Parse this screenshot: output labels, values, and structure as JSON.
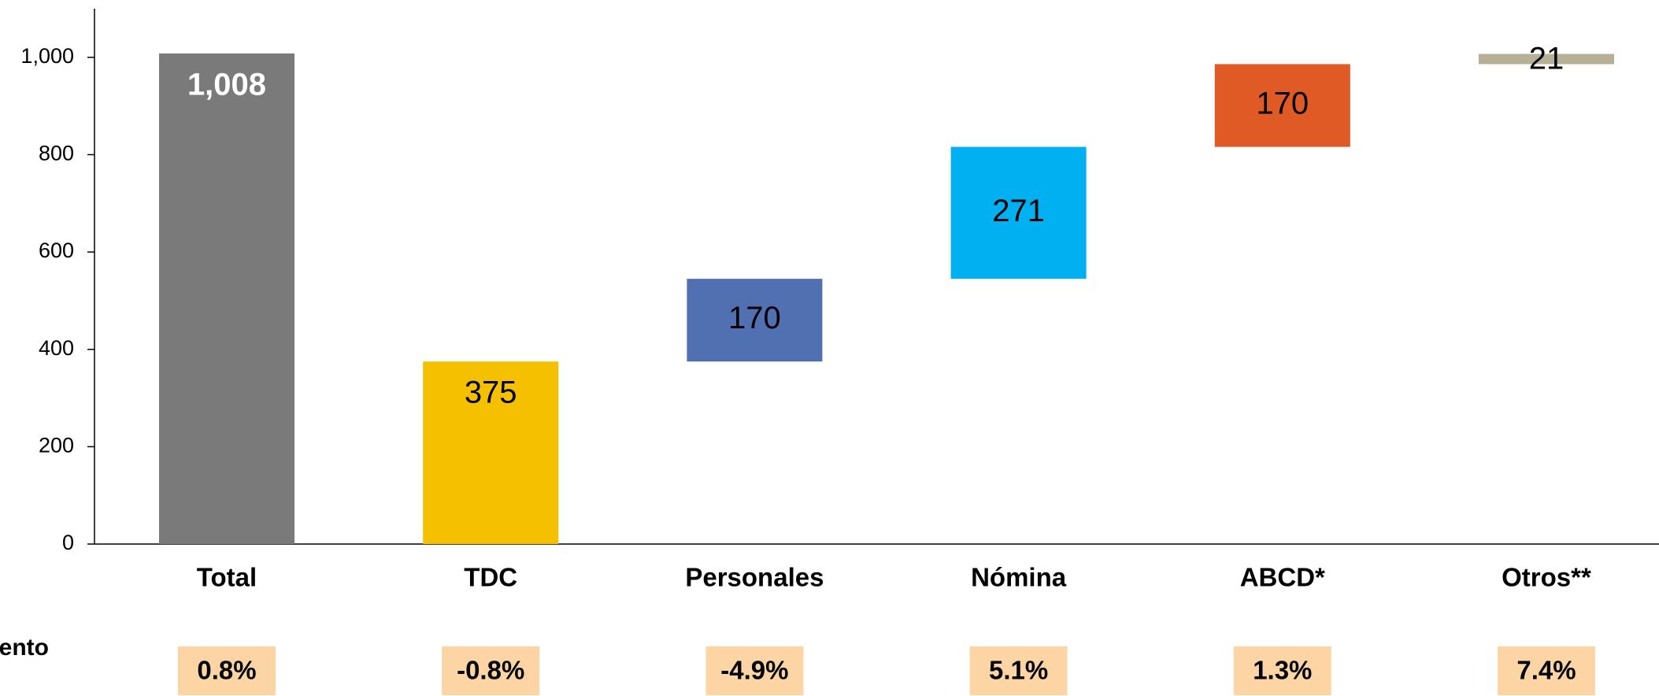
{
  "chart_data": {
    "type": "waterfall",
    "categories": [
      "Total",
      "TDC",
      "Personales",
      "Nómina",
      "ABCD*",
      "Otros**"
    ],
    "values": [
      1008,
      375,
      170,
      271,
      170,
      21
    ],
    "value_labels": [
      "1,008",
      "375",
      "170",
      "271",
      "170",
      "21"
    ],
    "colors": [
      "#7a7a7a",
      "#f5c000",
      "#5170b2",
      "#00b0f0",
      "#e05a25",
      "#b5b096"
    ],
    "ylim": [
      0,
      1100
    ],
    "yticks": [
      0,
      200,
      400,
      600,
      800,
      {
        "value": 1000,
        "label": "1,000"
      }
    ],
    "row_label": "ento",
    "growth": {
      "values": [
        0.8,
        -0.8,
        -4.9,
        5.1,
        1.3,
        7.4
      ],
      "value_labels": [
        "0.8%",
        "-0.8%",
        "-4.9%",
        "5.1%",
        "1.3%",
        "7.4%"
      ]
    }
  }
}
